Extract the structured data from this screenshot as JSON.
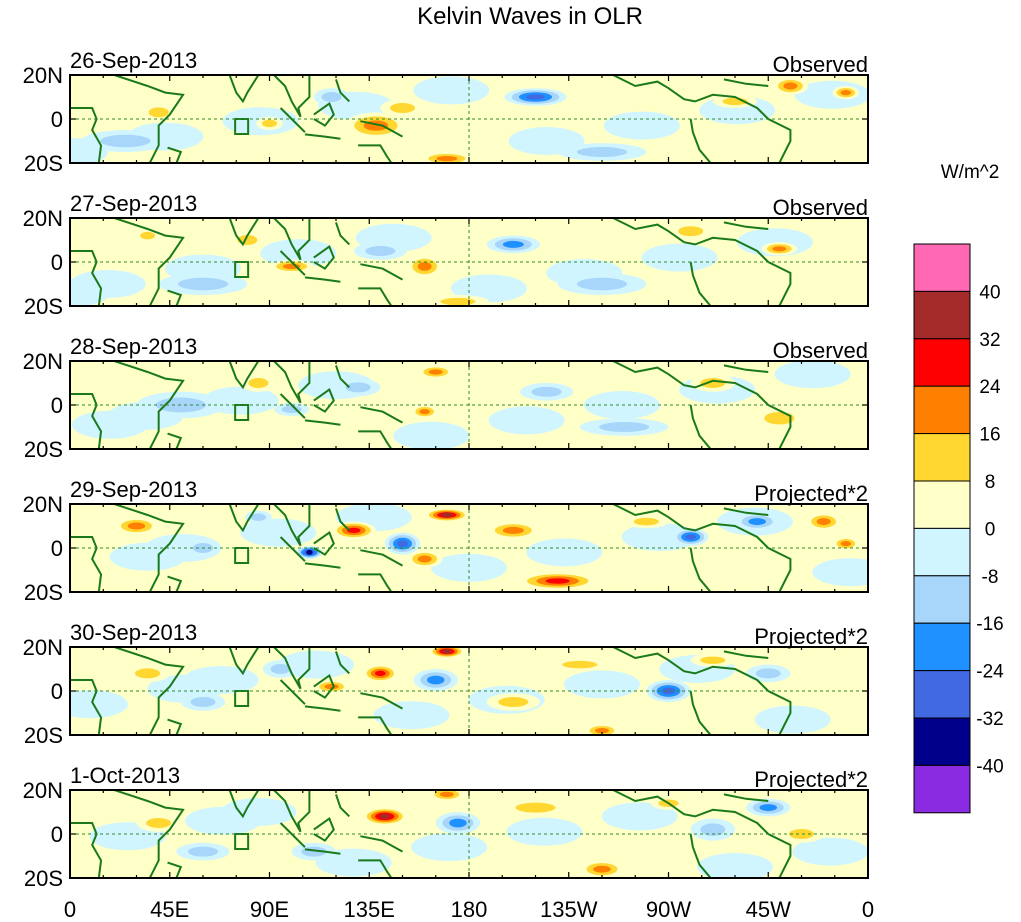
{
  "chart_data": {
    "type": "heatmap",
    "title": "Kelvin Waves in OLR",
    "variable": "OLR anomaly (Kelvin wave filtered)",
    "x_ticks": [
      "0",
      "45E",
      "90E",
      "135E",
      "180",
      "135W",
      "90W",
      "45W",
      "0"
    ],
    "x_tick_values": [
      0,
      45,
      90,
      135,
      180,
      225,
      270,
      315,
      360
    ],
    "y_ticks": [
      "20N",
      "0",
      "20S"
    ],
    "y_tick_values": [
      20,
      0,
      -20
    ],
    "xlim": [
      0,
      360
    ],
    "ylim": [
      -20,
      20
    ],
    "panels": [
      {
        "date": "26-Sep-2013",
        "mode": "Observed",
        "features": [
          [
            138,
            -3,
            14,
            6,
            22
          ],
          [
            210,
            10,
            14,
            4,
            -30
          ],
          [
            170,
            -18,
            12,
            3,
            20
          ],
          [
            150,
            5,
            10,
            4,
            14
          ],
          [
            90,
            -2,
            6,
            3,
            14
          ],
          [
            240,
            -15,
            20,
            4,
            -14
          ],
          [
            300,
            8,
            10,
            3,
            10
          ],
          [
            325,
            15,
            8,
            4,
            18
          ],
          [
            350,
            12,
            6,
            3,
            18
          ],
          [
            118,
            10,
            8,
            4,
            -14
          ],
          [
            40,
            3,
            8,
            4,
            10
          ],
          [
            25,
            -10,
            20,
            5,
            -10
          ]
        ]
      },
      {
        "date": "27-Sep-2013",
        "mode": "Observed",
        "features": [
          [
            160,
            -2,
            8,
            5,
            22
          ],
          [
            200,
            8,
            12,
            4,
            -24
          ],
          [
            175,
            -18,
            14,
            3,
            16
          ],
          [
            100,
            -2,
            10,
            3,
            18
          ],
          [
            140,
            5,
            12,
            4,
            -12
          ],
          [
            240,
            -10,
            20,
            5,
            -12
          ],
          [
            320,
            6,
            8,
            3,
            18
          ],
          [
            80,
            10,
            8,
            4,
            14
          ],
          [
            35,
            12,
            6,
            3,
            10
          ],
          [
            280,
            14,
            10,
            4,
            10
          ],
          [
            60,
            -10,
            20,
            5,
            -10
          ]
        ]
      },
      {
        "date": "28-Sep-2013",
        "mode": "Observed",
        "features": [
          [
            165,
            15,
            8,
            3,
            22
          ],
          [
            215,
            6,
            12,
            4,
            -16
          ],
          [
            160,
            -3,
            6,
            3,
            18
          ],
          [
            100,
            -2,
            8,
            3,
            -16
          ],
          [
            130,
            8,
            10,
            4,
            -12
          ],
          [
            85,
            10,
            8,
            4,
            14
          ],
          [
            290,
            10,
            10,
            4,
            12
          ],
          [
            250,
            -10,
            20,
            4,
            -10
          ],
          [
            50,
            0,
            20,
            6,
            -9
          ],
          [
            320,
            -6,
            12,
            5,
            9
          ]
        ]
      },
      {
        "date": "29-Sep-2013",
        "mode": "Projected*2",
        "features": [
          [
            128,
            8,
            10,
            4,
            32
          ],
          [
            108,
            -2,
            6,
            3,
            -36
          ],
          [
            150,
            2,
            8,
            5,
            -30
          ],
          [
            170,
            15,
            10,
            3,
            40
          ],
          [
            220,
            -15,
            18,
            4,
            26
          ],
          [
            160,
            -5,
            8,
            4,
            20
          ],
          [
            200,
            8,
            12,
            4,
            18
          ],
          [
            280,
            5,
            8,
            4,
            -28
          ],
          [
            310,
            12,
            10,
            4,
            -24
          ],
          [
            340,
            12,
            8,
            4,
            22
          ],
          [
            30,
            10,
            10,
            4,
            22
          ],
          [
            60,
            0,
            8,
            4,
            -14
          ],
          [
            260,
            12,
            10,
            3,
            16
          ],
          [
            350,
            2,
            6,
            3,
            18
          ],
          [
            85,
            14,
            6,
            3,
            -16
          ]
        ]
      },
      {
        "date": "30-Sep-2013",
        "mode": "Projected*2",
        "features": [
          [
            140,
            8,
            8,
            4,
            32
          ],
          [
            170,
            18,
            8,
            3,
            36
          ],
          [
            118,
            2,
            8,
            3,
            18
          ],
          [
            165,
            5,
            10,
            5,
            -20
          ],
          [
            240,
            -18,
            8,
            3,
            24
          ],
          [
            270,
            0,
            10,
            5,
            -26
          ],
          [
            315,
            8,
            10,
            4,
            -16
          ],
          [
            290,
            14,
            10,
            3,
            14
          ],
          [
            230,
            12,
            14,
            3,
            12
          ],
          [
            35,
            8,
            10,
            4,
            14
          ],
          [
            60,
            -5,
            10,
            4,
            -12
          ],
          [
            95,
            10,
            8,
            4,
            -16
          ],
          [
            200,
            -5,
            12,
            4,
            10
          ]
        ]
      },
      {
        "date": "1-Oct-2013",
        "mode": "Projected*2",
        "features": [
          [
            142,
            8,
            10,
            4,
            34
          ],
          [
            170,
            18,
            8,
            3,
            22
          ],
          [
            175,
            5,
            10,
            5,
            -22
          ],
          [
            240,
            -16,
            10,
            4,
            24
          ],
          [
            315,
            12,
            10,
            4,
            -22
          ],
          [
            290,
            2,
            10,
            5,
            -14
          ],
          [
            40,
            5,
            10,
            4,
            14
          ],
          [
            210,
            12,
            16,
            4,
            12
          ],
          [
            110,
            -8,
            10,
            4,
            -12
          ],
          [
            330,
            0,
            10,
            4,
            10
          ],
          [
            60,
            -8,
            12,
            4,
            -10
          ],
          [
            270,
            14,
            8,
            3,
            10
          ]
        ]
      }
    ],
    "colorbar": {
      "unit": "W/m^2",
      "labels": [
        "40",
        "32",
        "24",
        "16",
        "8",
        "0",
        "-8",
        "-16",
        "-24",
        "-32",
        "-40"
      ],
      "levels": [
        40,
        32,
        24,
        16,
        8,
        0,
        -8,
        -16,
        -24,
        -32,
        -40
      ],
      "colors": [
        "#ff69b4",
        "#a52a2a",
        "#ff0000",
        "#ff7f00",
        "#ffd730",
        "#ffffc8",
        "#d0f5ff",
        "#a8d5fa",
        "#1e90ff",
        "#4169e1",
        "#00008b",
        "#8a2be2"
      ]
    }
  }
}
